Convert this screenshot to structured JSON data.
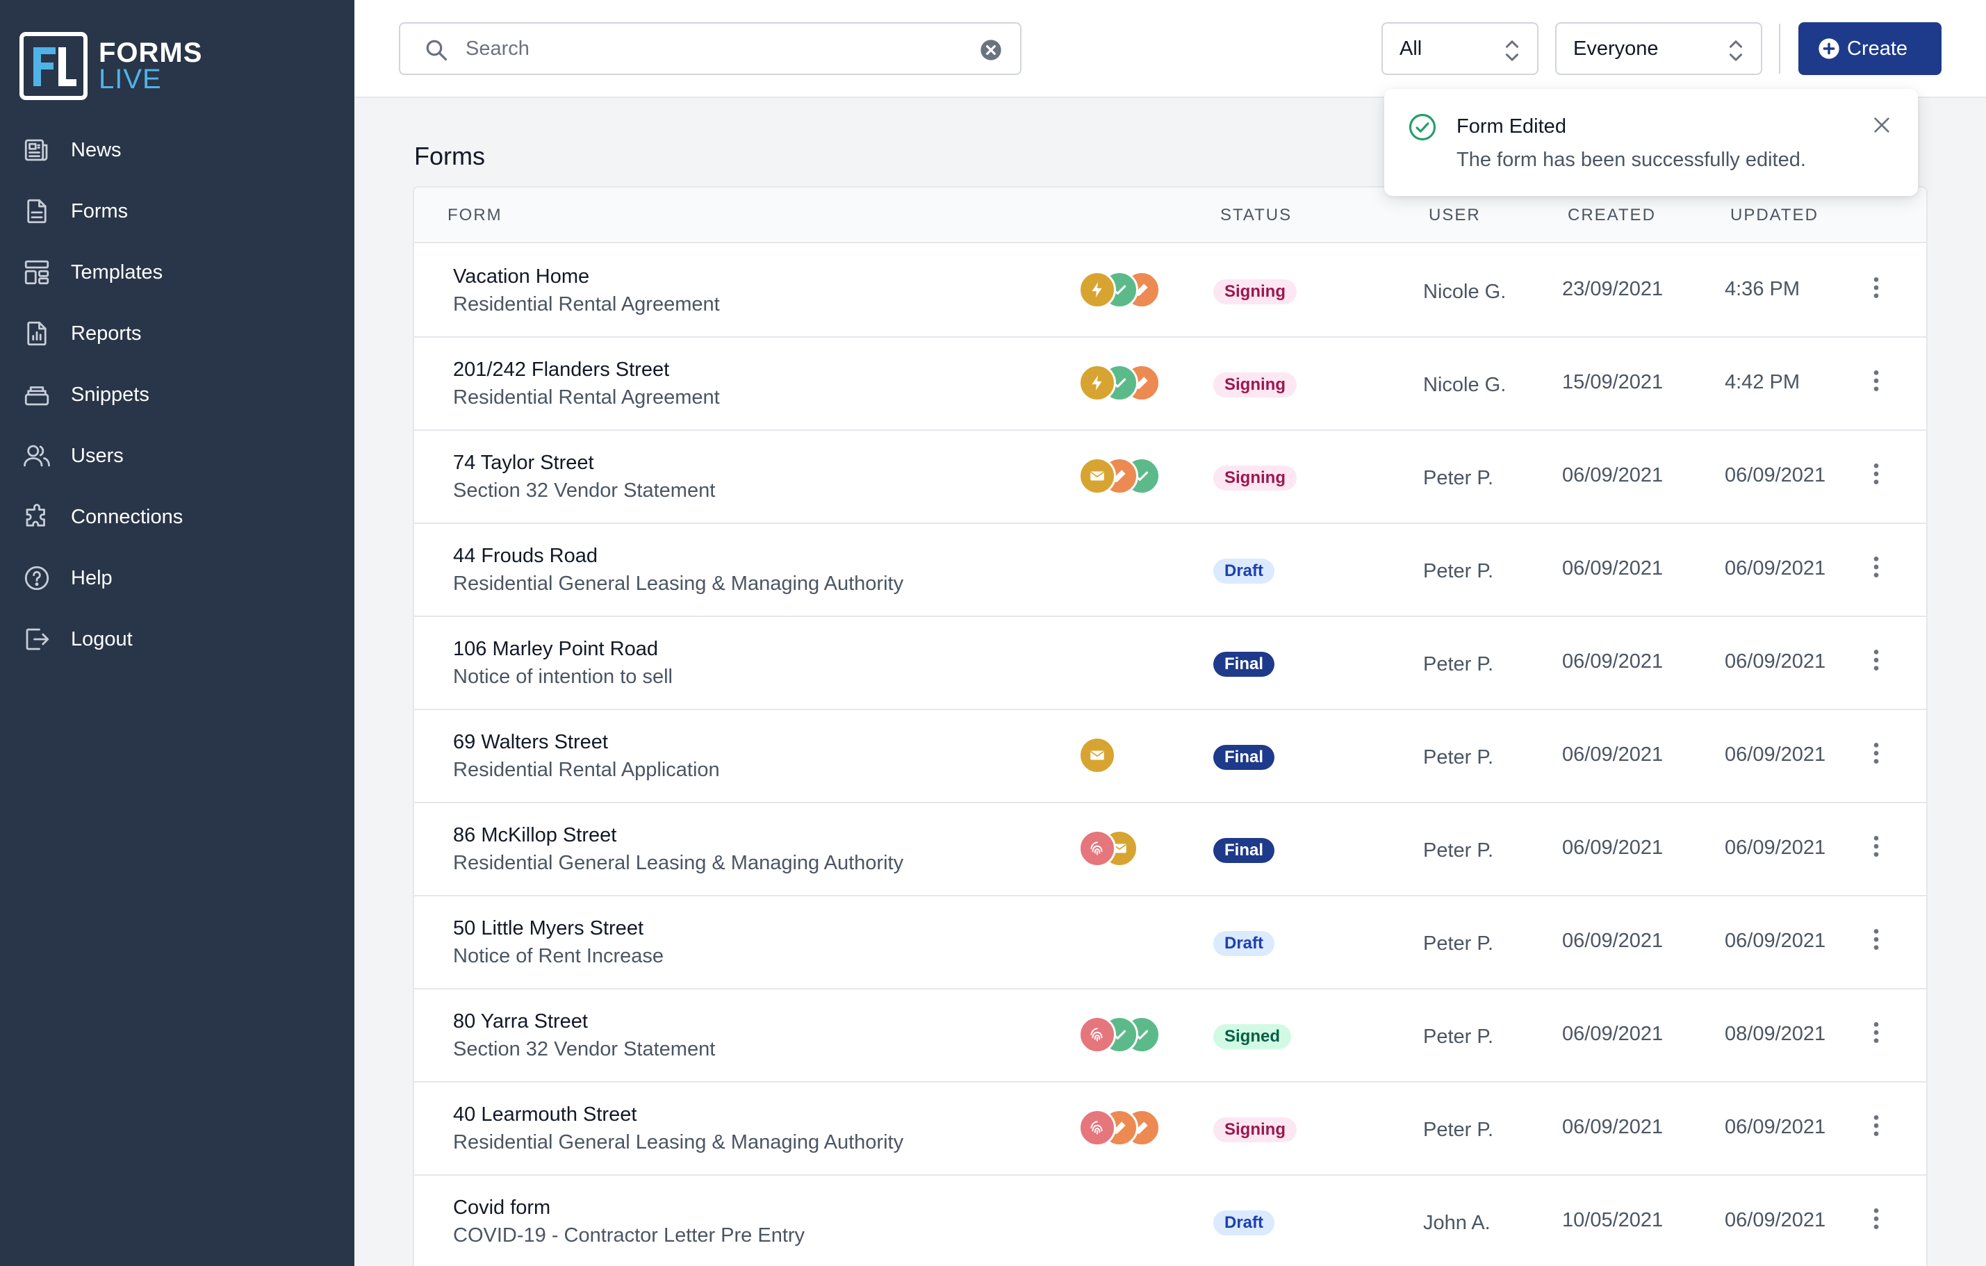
{
  "brand": {
    "name_top": "FORMS",
    "name_bottom": "LIVE"
  },
  "sidebar": {
    "items": [
      {
        "label": "News",
        "icon": "newspaper-icon"
      },
      {
        "label": "Forms",
        "icon": "document-icon"
      },
      {
        "label": "Templates",
        "icon": "template-icon"
      },
      {
        "label": "Reports",
        "icon": "report-icon"
      },
      {
        "label": "Snippets",
        "icon": "stack-icon"
      },
      {
        "label": "Users",
        "icon": "users-icon"
      },
      {
        "label": "Connections",
        "icon": "puzzle-icon"
      },
      {
        "label": "Help",
        "icon": "help-icon"
      },
      {
        "label": "Logout",
        "icon": "logout-icon"
      }
    ]
  },
  "topbar": {
    "search": {
      "placeholder": "Search",
      "value": ""
    },
    "filter_status": "All",
    "filter_owner": "Everyone",
    "create_label": "Create"
  },
  "page": {
    "title": "Forms"
  },
  "table": {
    "headers": {
      "form": "FORM",
      "status": "STATUS",
      "user": "USER",
      "created": "CREATED",
      "updated": "UPDATED"
    },
    "rows": [
      {
        "title": "Vacation Home",
        "subtitle": "Residential Rental Agreement",
        "icons": [
          "bolt",
          "check",
          "pen"
        ],
        "status": "Signing",
        "user": "Nicole G.",
        "created": "23/09/2021",
        "updated": "4:36 PM"
      },
      {
        "title": "201/242 Flanders Street",
        "subtitle": "Residential Rental Agreement",
        "icons": [
          "bolt",
          "check",
          "pen"
        ],
        "status": "Signing",
        "user": "Nicole G.",
        "created": "15/09/2021",
        "updated": "4:42 PM"
      },
      {
        "title": "74 Taylor Street",
        "subtitle": "Section 32 Vendor Statement",
        "icons": [
          "mail",
          "pen",
          "check"
        ],
        "status": "Signing",
        "user": "Peter P.",
        "created": "06/09/2021",
        "updated": "06/09/2021"
      },
      {
        "title": "44 Frouds Road",
        "subtitle": "Residential General Leasing & Managing Authority",
        "icons": [],
        "status": "Draft",
        "user": "Peter P.",
        "created": "06/09/2021",
        "updated": "06/09/2021"
      },
      {
        "title": "106 Marley Point Road",
        "subtitle": "Notice of intention to sell",
        "icons": [],
        "status": "Final",
        "user": "Peter P.",
        "created": "06/09/2021",
        "updated": "06/09/2021"
      },
      {
        "title": "69 Walters Street",
        "subtitle": "Residential Rental Application",
        "icons": [
          "mail"
        ],
        "status": "Final",
        "user": "Peter P.",
        "created": "06/09/2021",
        "updated": "06/09/2021"
      },
      {
        "title": "86 McKillop Street",
        "subtitle": "Residential General Leasing & Managing Authority",
        "icons": [
          "fingerprint",
          "mail"
        ],
        "status": "Final",
        "user": "Peter P.",
        "created": "06/09/2021",
        "updated": "06/09/2021"
      },
      {
        "title": "50 Little Myers Street",
        "subtitle": "Notice of Rent Increase",
        "icons": [],
        "status": "Draft",
        "user": "Peter P.",
        "created": "06/09/2021",
        "updated": "06/09/2021"
      },
      {
        "title": "80 Yarra Street",
        "subtitle": "Section 32 Vendor Statement",
        "icons": [
          "fingerprint",
          "check",
          "check"
        ],
        "status": "Signed",
        "user": "Peter P.",
        "created": "06/09/2021",
        "updated": "08/09/2021"
      },
      {
        "title": "40 Learmouth Street",
        "subtitle": "Residential General Leasing & Managing Authority",
        "icons": [
          "fingerprint",
          "pen",
          "pen"
        ],
        "status": "Signing",
        "user": "Peter P.",
        "created": "06/09/2021",
        "updated": "06/09/2021"
      },
      {
        "title": "Covid form",
        "subtitle": "COVID-19 - Contractor Letter Pre Entry",
        "icons": [],
        "status": "Draft",
        "user": "John A.",
        "created": "10/05/2021",
        "updated": "06/09/2021"
      }
    ]
  },
  "toast": {
    "title": "Form Edited",
    "message": "The form has been successfully edited."
  },
  "colors": {
    "sidebar_bg": "#293548",
    "primary": "#1e3a8a",
    "accent_blue": "#4fb3e8",
    "icon_gold": "#d8a431",
    "icon_green": "#5cba8a",
    "icon_orange": "#ec8a52",
    "icon_pink": "#e5767c",
    "success": "#22a06b"
  }
}
